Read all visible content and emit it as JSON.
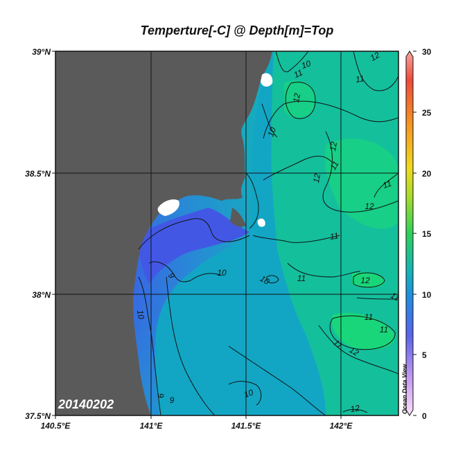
{
  "title": "Temperture[-C] @ Depth[m]=Top",
  "date_stamp": "20140202",
  "watermark": "Ocean Data View",
  "lat_labels": [
    "39°N",
    "38.5°N",
    "38°N",
    "37.5°N"
  ],
  "lon_labels": [
    "140.5°E",
    "141°E",
    "141.5°E",
    "142°E"
  ],
  "colorbar": {
    "ticks": [
      "30",
      "25",
      "20",
      "15",
      "10",
      "5",
      "0"
    ],
    "min": 0,
    "max": 30
  },
  "contour_labels": [
    "10",
    "11",
    "12",
    "12",
    "11",
    "10",
    "12",
    "11",
    "12",
    "12",
    "11",
    "11",
    "10",
    "11",
    "10",
    "11",
    "12",
    "11",
    "11",
    "11",
    "12",
    "10",
    "9",
    "12",
    "9",
    "9",
    "10"
  ],
  "colors": {
    "land": "#5a5a5a",
    "coast_white": "#ffffff",
    "sea_cold": "#3f63e8",
    "sea_mid": "#12a6c4",
    "sea_warm": "#17d07a"
  },
  "chart_data": {
    "type": "map",
    "title": "Temperture[-C] @ Depth[m]=Top",
    "xlabel": "",
    "ylabel": "",
    "lon_range": [
      140.5,
      142.3
    ],
    "lat_range": [
      37.5,
      39.0
    ],
    "lon_ticks": [
      140.5,
      141.0,
      141.5,
      142.0
    ],
    "lat_ticks": [
      37.5,
      38.0,
      38.5,
      39.0
    ],
    "colorbar_range": [
      0,
      30
    ],
    "colorbar_ticks": [
      0,
      5,
      10,
      15,
      20,
      25,
      30
    ],
    "contour_levels": [
      9,
      10,
      11,
      12
    ],
    "grid": true
  }
}
